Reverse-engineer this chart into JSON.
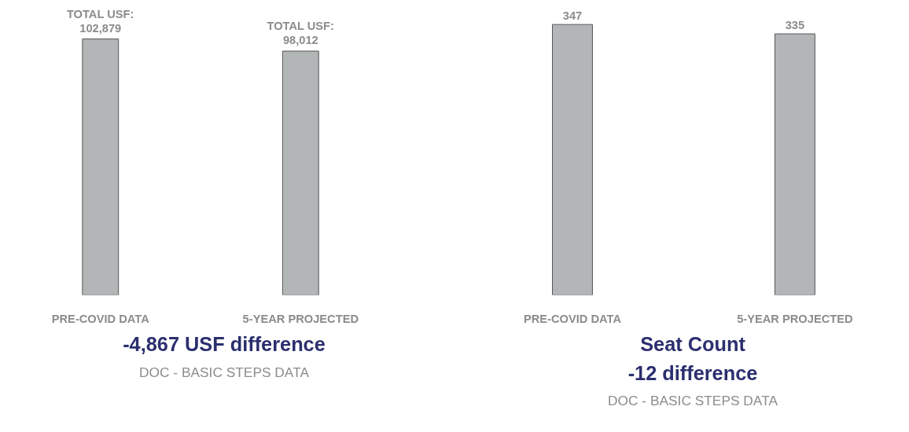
{
  "chart_data": [
    {
      "type": "bar",
      "categories": [
        "PRE-COVID DATA",
        "5-YEAR PROJECTED"
      ],
      "values": [
        102879,
        98012
      ],
      "value_labels": [
        "TOTAL USF:\n102,879",
        "TOTAL USF:\n98,012"
      ],
      "color": "#b3b6b7",
      "tick_labels": "x",
      "grid": false,
      "annotations": [
        "-4,867 USF difference",
        "DOC - BASIC STEPS DATA"
      ]
    },
    {
      "type": "bar",
      "categories": [
        "PRE-COVID DATA",
        "5-YEAR PROJECTED"
      ],
      "values": [
        347,
        335
      ],
      "value_labels": [
        "347",
        "335"
      ],
      "color": "#b3b6b7",
      "tick_labels": "x",
      "grid": false,
      "annotations": [
        "Seat Count",
        "-12 difference",
        "DOC - BASIC STEPS DATA"
      ]
    }
  ]
}
